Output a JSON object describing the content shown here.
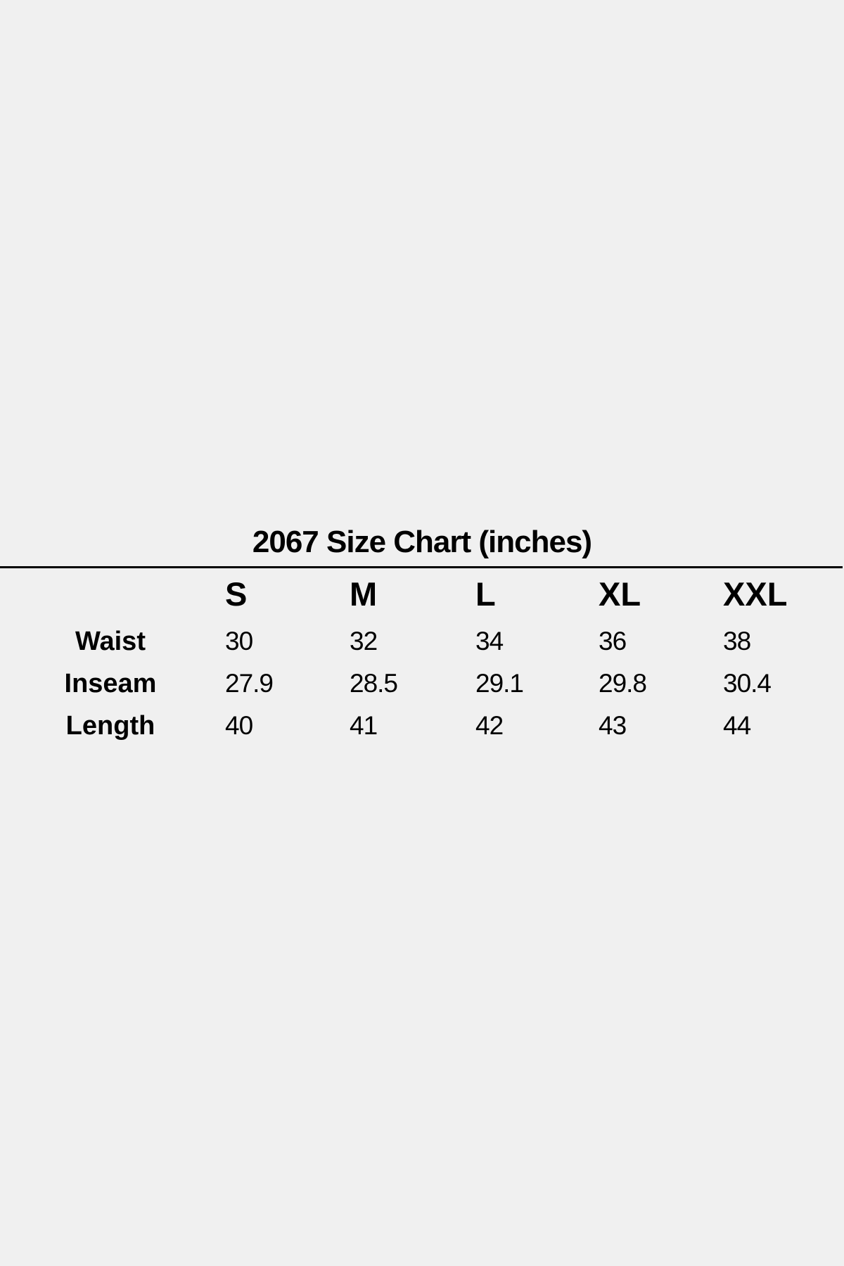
{
  "chart_data": {
    "type": "table",
    "title": "2067 Size Chart (inches)",
    "columns": [
      "S",
      "M",
      "L",
      "XL",
      "XXL"
    ],
    "rows": [
      {
        "label": "Waist",
        "values": [
          "30",
          "32",
          "34",
          "36",
          "38"
        ]
      },
      {
        "label": "Inseam",
        "values": [
          "27.9",
          "28.5",
          "29.1",
          "29.8",
          "30.4"
        ]
      },
      {
        "label": "Length",
        "values": [
          "40",
          "41",
          "42",
          "43",
          "44"
        ]
      }
    ]
  }
}
